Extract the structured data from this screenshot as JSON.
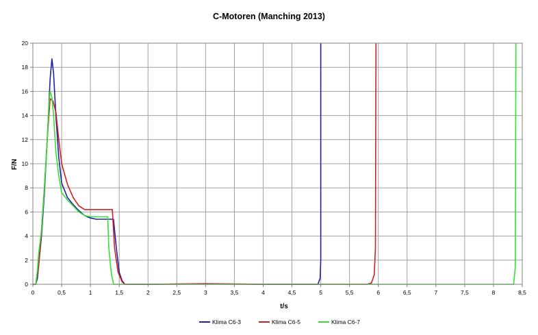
{
  "chart_data": {
    "type": "line",
    "title": "C-Motoren (Manching 2013)",
    "xlabel": "t/s",
    "ylabel": "F/N",
    "xlim": [
      0,
      8.5
    ],
    "ylim": [
      0,
      20
    ],
    "x_ticks": [
      "0",
      "0,5",
      "1",
      "1,5",
      "2",
      "2,5",
      "3",
      "3,5",
      "4",
      "4,5",
      "5",
      "5,5",
      "6",
      "6,5",
      "7",
      "7,5",
      "8",
      "8,5"
    ],
    "y_ticks": [
      "0",
      "2",
      "4",
      "6",
      "8",
      "10",
      "12",
      "14",
      "16",
      "18",
      "20"
    ],
    "grid": true,
    "legend_position": "bottom",
    "series": [
      {
        "name": "Klima C6-3",
        "color": "#1f1fa8",
        "points": [
          [
            0,
            0
          ],
          [
            0.05,
            0
          ],
          [
            0.08,
            0.5
          ],
          [
            0.1,
            1.5
          ],
          [
            0.15,
            4
          ],
          [
            0.2,
            7.5
          ],
          [
            0.25,
            12
          ],
          [
            0.3,
            17
          ],
          [
            0.33,
            18.7
          ],
          [
            0.36,
            17.5
          ],
          [
            0.4,
            14
          ],
          [
            0.45,
            10.5
          ],
          [
            0.5,
            8.4
          ],
          [
            0.6,
            7.2
          ],
          [
            0.7,
            6.6
          ],
          [
            0.8,
            6.1
          ],
          [
            0.9,
            5.7
          ],
          [
            1.0,
            5.5
          ],
          [
            1.1,
            5.4
          ],
          [
            1.2,
            5.4
          ],
          [
            1.3,
            5.4
          ],
          [
            1.4,
            5.4
          ],
          [
            1.45,
            3
          ],
          [
            1.5,
            1
          ],
          [
            1.55,
            0.3
          ],
          [
            1.6,
            0
          ],
          [
            2.0,
            0
          ],
          [
            3.0,
            0.02
          ],
          [
            4.0,
            0
          ],
          [
            4.95,
            0
          ],
          [
            4.99,
            0.5
          ],
          [
            5.0,
            2
          ],
          [
            5.0,
            20
          ]
        ]
      },
      {
        "name": "Klima C6-5",
        "color": "#cc2020",
        "points": [
          [
            0,
            0
          ],
          [
            0.05,
            0
          ],
          [
            0.1,
            1.5
          ],
          [
            0.15,
            4.5
          ],
          [
            0.2,
            8
          ],
          [
            0.25,
            12
          ],
          [
            0.3,
            15.4
          ],
          [
            0.35,
            15.2
          ],
          [
            0.4,
            14.3
          ],
          [
            0.45,
            12
          ],
          [
            0.5,
            10
          ],
          [
            0.6,
            8.3
          ],
          [
            0.7,
            7.2
          ],
          [
            0.8,
            6.5
          ],
          [
            0.9,
            6.2
          ],
          [
            1.0,
            6.2
          ],
          [
            1.1,
            6.2
          ],
          [
            1.2,
            6.2
          ],
          [
            1.3,
            6.2
          ],
          [
            1.38,
            6.2
          ],
          [
            1.42,
            3
          ],
          [
            1.48,
            1
          ],
          [
            1.55,
            0.2
          ],
          [
            1.6,
            0
          ],
          [
            2.0,
            0
          ],
          [
            2.5,
            0.03
          ],
          [
            3.0,
            0.05
          ],
          [
            4.0,
            0
          ],
          [
            5.0,
            0
          ],
          [
            5.8,
            0
          ],
          [
            5.88,
            0.1
          ],
          [
            5.93,
            0.8
          ],
          [
            5.95,
            3
          ],
          [
            5.96,
            20
          ]
        ]
      },
      {
        "name": "Klima C6-7",
        "color": "#33e033",
        "points": [
          [
            0,
            0
          ],
          [
            0.05,
            0
          ],
          [
            0.08,
            1.2
          ],
          [
            0.1,
            2.5
          ],
          [
            0.15,
            4.5
          ],
          [
            0.2,
            8
          ],
          [
            0.25,
            12
          ],
          [
            0.28,
            15
          ],
          [
            0.3,
            16
          ],
          [
            0.33,
            15.5
          ],
          [
            0.36,
            14
          ],
          [
            0.4,
            11
          ],
          [
            0.45,
            9
          ],
          [
            0.5,
            7.6
          ],
          [
            0.6,
            7
          ],
          [
            0.7,
            6.5
          ],
          [
            0.8,
            6
          ],
          [
            0.9,
            5.7
          ],
          [
            1.0,
            5.6
          ],
          [
            1.1,
            5.6
          ],
          [
            1.2,
            5.6
          ],
          [
            1.3,
            5.6
          ],
          [
            1.32,
            3
          ],
          [
            1.36,
            1
          ],
          [
            1.4,
            0
          ],
          [
            2.0,
            0
          ],
          [
            3.0,
            0
          ],
          [
            4.0,
            0
          ],
          [
            5.0,
            0
          ],
          [
            6.0,
            0
          ],
          [
            7.0,
            0
          ],
          [
            8.35,
            0
          ],
          [
            8.38,
            1.5
          ],
          [
            8.39,
            20
          ]
        ]
      }
    ]
  }
}
